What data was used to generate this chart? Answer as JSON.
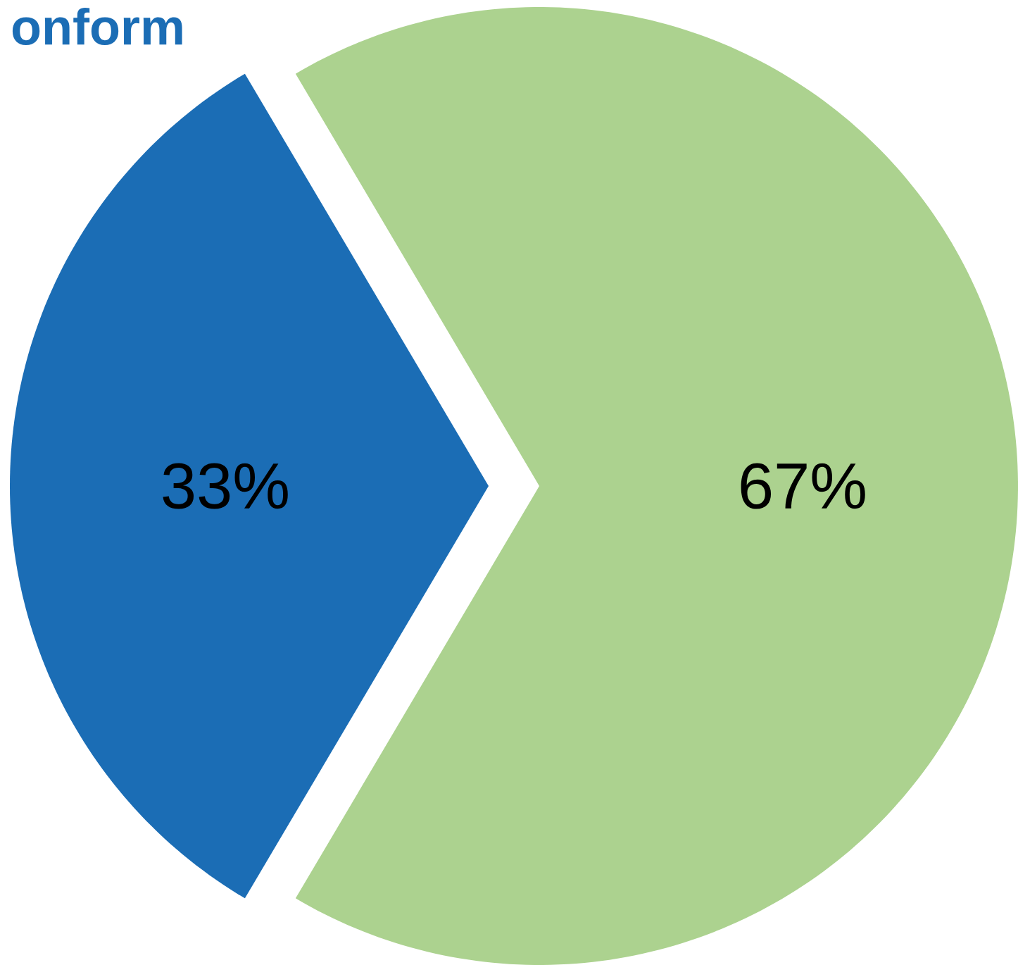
{
  "chart_data": {
    "type": "pie",
    "title": "onform",
    "categories": [
      null,
      null
    ],
    "values": [
      33,
      67
    ],
    "value_labels": [
      "33%",
      "67%"
    ],
    "colors": [
      "#1b6db5",
      "#acd28f"
    ]
  }
}
